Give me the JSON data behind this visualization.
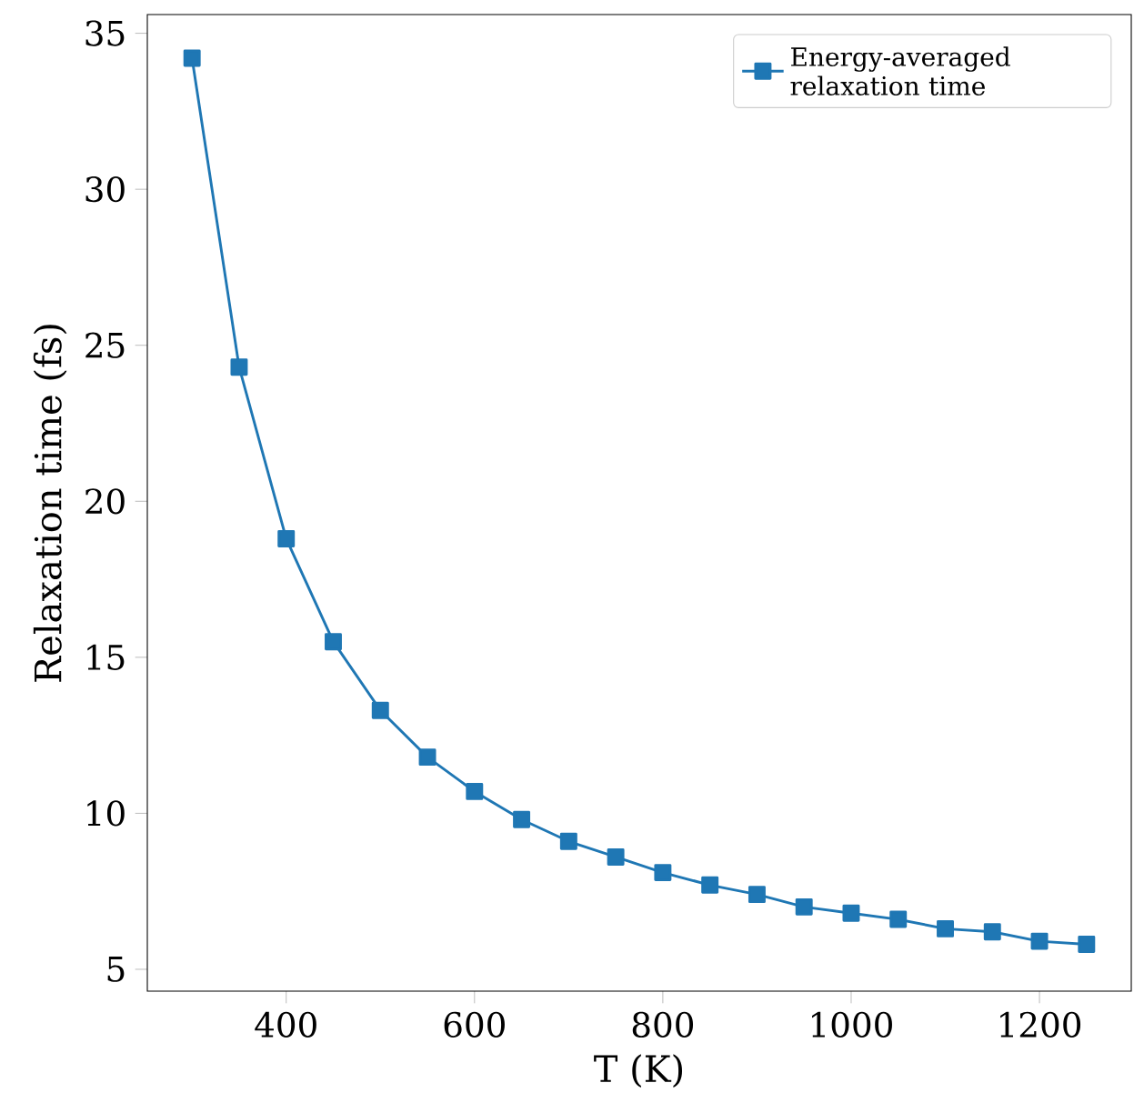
{
  "chart_data": {
    "type": "line",
    "xlabel": "T (K)",
    "ylabel": "Relaxation time (fs)",
    "x": [
      300,
      350,
      400,
      450,
      500,
      550,
      600,
      650,
      700,
      750,
      800,
      850,
      900,
      950,
      1000,
      1050,
      1100,
      1150,
      1200,
      1250
    ],
    "series": [
      {
        "name": "Energy-averaged relaxation time",
        "color": "#1f77b4",
        "values": [
          34.2,
          24.3,
          18.8,
          15.5,
          13.3,
          11.8,
          10.7,
          9.8,
          9.1,
          8.6,
          8.1,
          7.7,
          7.4,
          7.0,
          6.8,
          6.6,
          6.3,
          6.2,
          5.9,
          5.8
        ]
      }
    ],
    "xlim": [
      252.5,
      1297.5
    ],
    "ylim": [
      4.3,
      35.6
    ],
    "xticks": [
      400,
      600,
      800,
      1000,
      1200
    ],
    "yticks": [
      5,
      10,
      15,
      20,
      25,
      30,
      35
    ],
    "marker": "square",
    "line_style": "solid",
    "legend": "top right",
    "grid": false
  }
}
